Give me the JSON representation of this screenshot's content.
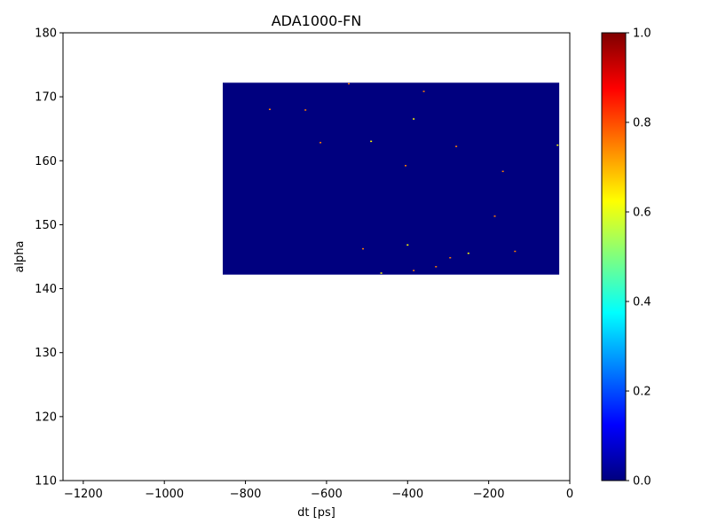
{
  "chart_data": {
    "type": "heatmap",
    "title": "ADA1000-FN",
    "xlabel": "dt [ps]",
    "ylabel": "alpha",
    "xlim": [
      -1250,
      0
    ],
    "ylim": [
      110,
      180
    ],
    "x_ticks": [
      -1200,
      -1000,
      -800,
      -600,
      -400,
      -200,
      0
    ],
    "x_tick_labels": [
      "−1200",
      "−1000",
      "−800",
      "−600",
      "−400",
      "−200",
      "0"
    ],
    "y_ticks": [
      110,
      120,
      130,
      140,
      150,
      160,
      170,
      180
    ],
    "y_tick_labels": [
      "110",
      "120",
      "130",
      "140",
      "150",
      "160",
      "170",
      "180"
    ],
    "data_extent": {
      "x": [
        -856,
        -26
      ],
      "y": [
        142.2,
        172.2
      ]
    },
    "background_value": 0.0,
    "hot_spots": [
      {
        "x": -740,
        "y": 168.0,
        "v": 0.8
      },
      {
        "x": -652,
        "y": 167.9,
        "v": 0.75
      },
      {
        "x": -545,
        "y": 172.0,
        "v": 0.7
      },
      {
        "x": -360,
        "y": 170.8,
        "v": 0.8
      },
      {
        "x": -385,
        "y": 166.5,
        "v": 0.6
      },
      {
        "x": -615,
        "y": 162.8,
        "v": 0.7
      },
      {
        "x": -490,
        "y": 163.0,
        "v": 0.6
      },
      {
        "x": -280,
        "y": 162.2,
        "v": 0.8
      },
      {
        "x": -30,
        "y": 162.4,
        "v": 0.6
      },
      {
        "x": -405,
        "y": 159.2,
        "v": 0.7
      },
      {
        "x": -165,
        "y": 158.3,
        "v": 0.8
      },
      {
        "x": -185,
        "y": 151.3,
        "v": 0.7
      },
      {
        "x": -400,
        "y": 146.8,
        "v": 0.6
      },
      {
        "x": -510,
        "y": 146.2,
        "v": 0.8
      },
      {
        "x": -135,
        "y": 145.8,
        "v": 0.7
      },
      {
        "x": -250,
        "y": 145.5,
        "v": 0.6
      },
      {
        "x": -295,
        "y": 144.8,
        "v": 0.75
      },
      {
        "x": -330,
        "y": 143.4,
        "v": 0.8
      },
      {
        "x": -385,
        "y": 142.8,
        "v": 0.7
      },
      {
        "x": -465,
        "y": 142.4,
        "v": 0.6
      }
    ],
    "colorbar": {
      "colormap": "jet",
      "range": [
        0.0,
        1.0
      ],
      "ticks": [
        0.0,
        0.2,
        0.4,
        0.6,
        0.8,
        1.0
      ],
      "tick_labels": [
        "0.0",
        "0.2",
        "0.4",
        "0.6",
        "0.8",
        "1.0"
      ],
      "stops": [
        "#00007f",
        "#0000ff",
        "#007fff",
        "#00ffff",
        "#7fff7f",
        "#ffff00",
        "#ff7f00",
        "#ff0000",
        "#7f0000"
      ]
    },
    "grid": false,
    "legend": "none"
  }
}
